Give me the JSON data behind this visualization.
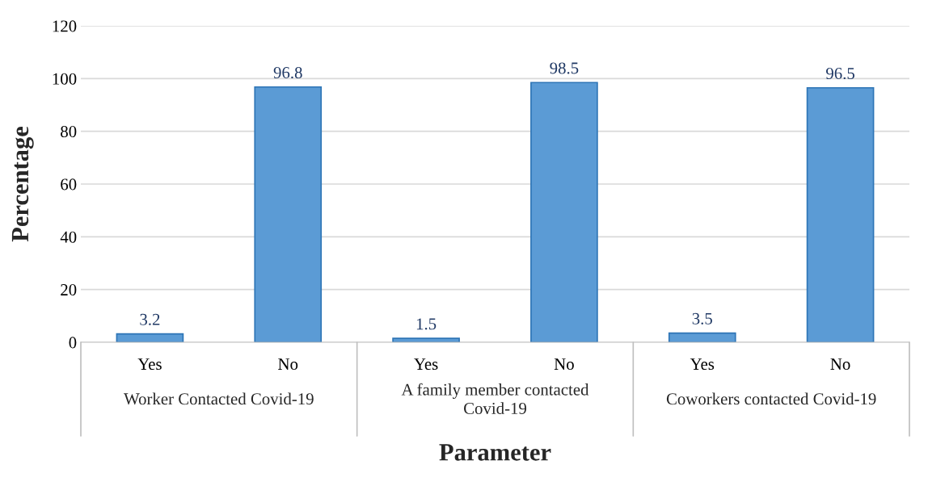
{
  "chart_data": {
    "type": "bar",
    "xlabel": "Parameter",
    "ylabel": "Percentage",
    "categories": [
      "Yes",
      "No",
      "Yes",
      "No",
      "Yes",
      "No"
    ],
    "values": [
      3.2,
      96.8,
      1.5,
      98.5,
      3.5,
      96.5
    ],
    "color": "#5b9bd5",
    "ylim": [
      0,
      120
    ],
    "yticks": [
      0,
      20,
      40,
      60,
      80,
      100,
      120
    ],
    "grid": "y",
    "data_labels": true,
    "legend": false,
    "annotations": [
      "Worker Contacted Covid-19",
      "A family member contacted\nCovid-19",
      "Coworkers contacted Covid-19"
    ]
  }
}
